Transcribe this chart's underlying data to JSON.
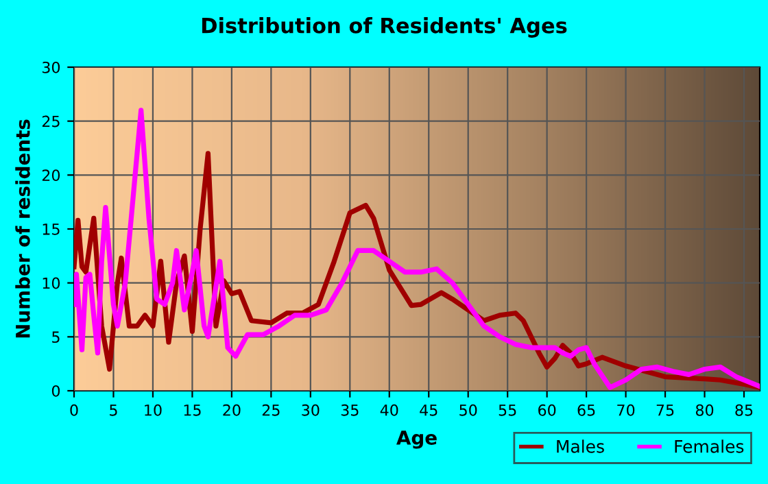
{
  "chart_data": {
    "type": "line",
    "title": "Distribution of Residents' Ages",
    "xlabel": "Age",
    "ylabel": "Number of residents",
    "xlim": [
      0,
      87
    ],
    "ylim": [
      0,
      30
    ],
    "xticks": [
      0,
      5,
      10,
      15,
      20,
      25,
      30,
      35,
      40,
      45,
      50,
      55,
      60,
      65,
      70,
      75,
      80,
      85
    ],
    "yticks": [
      0,
      5,
      10,
      15,
      20,
      25,
      30
    ],
    "grid": true,
    "legend": "bottom right",
    "line_style": "solid",
    "marker": "none",
    "series": [
      {
        "name": "Males",
        "color": "#a00000",
        "x": [
          0,
          0.5,
          1,
          1.5,
          2.5,
          3.5,
          4.5,
          5.5,
          6,
          7,
          8,
          9,
          10,
          11,
          12,
          13,
          14,
          15,
          16,
          17,
          18,
          19,
          20,
          21,
          22.5,
          25,
          27,
          29,
          31,
          33,
          35,
          37,
          38,
          40,
          42.8,
          44,
          46.6,
          48,
          50,
          52,
          54,
          56,
          57,
          59,
          60,
          61,
          62,
          63,
          64,
          65,
          67,
          70,
          75,
          80,
          82,
          85,
          87
        ],
        "values": [
          11.5,
          15.8,
          11.5,
          11,
          16,
          6,
          2,
          10,
          12.3,
          6,
          6,
          7,
          6,
          12,
          4.5,
          10,
          12.5,
          5.5,
          15,
          22,
          6,
          10.2,
          9,
          9.2,
          6.5,
          6.3,
          7.2,
          7.2,
          8,
          12,
          16.5,
          17.2,
          16,
          11.2,
          7.9,
          8,
          9.1,
          8.5,
          7.5,
          6.5,
          7,
          7.2,
          6.5,
          3.5,
          2.2,
          3,
          4.2,
          3.5,
          2.3,
          2.5,
          3.1,
          2.3,
          1.3,
          1.1,
          1.0,
          0.6,
          0.3
        ]
      },
      {
        "name": "Females",
        "color": "#ff00ff",
        "x": [
          0,
          0.3,
          1,
          1.5,
          2,
          2.5,
          3,
          3.5,
          4,
          5,
          5.5,
          6.5,
          7.5,
          8.5,
          9.5,
          10.5,
          11.5,
          12.5,
          13,
          14,
          15,
          15.5,
          16.5,
          17,
          18.5,
          19.5,
          20.5,
          22,
          24,
          26,
          28,
          30,
          32,
          34,
          36,
          38,
          40,
          42,
          44,
          46,
          48,
          50,
          52,
          54,
          56,
          58,
          60,
          61,
          62,
          63,
          64,
          65,
          66,
          68,
          70,
          72,
          74,
          76,
          78,
          80,
          82,
          84,
          87
        ],
        "values": [
          8,
          10.8,
          3.8,
          10.5,
          10.8,
          7,
          3.5,
          12,
          17,
          8,
          6,
          10,
          18,
          26,
          16,
          8.5,
          8,
          10,
          13,
          7.5,
          11,
          13,
          6,
          5,
          12,
          4,
          3.2,
          5.2,
          5.2,
          6,
          7,
          7,
          7.5,
          10,
          13,
          13,
          12,
          11,
          11,
          11.3,
          10,
          8,
          6,
          5,
          4.3,
          4,
          4,
          4,
          3.5,
          3.2,
          3.8,
          4,
          2.5,
          0.3,
          1,
          2,
          2.2,
          1.8,
          1.5,
          2,
          2.2,
          1.3,
          0.4
        ]
      }
    ]
  }
}
